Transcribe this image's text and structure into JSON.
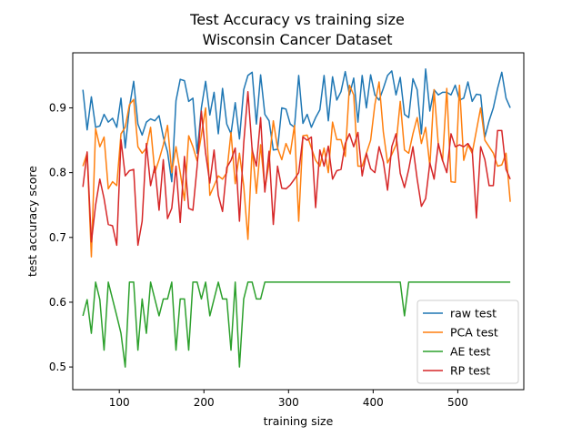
{
  "chart_data": {
    "type": "line",
    "title": "Test Accuracy vs training size",
    "subtitle": "Wisconsin Cancer Dataset",
    "xlabel": "training size",
    "ylabel": "test accuracy score",
    "xlim": [
      45,
      578
    ],
    "ylim": [
      0.465,
      0.985
    ],
    "xticks": [
      100,
      200,
      300,
      400,
      500
    ],
    "yticks": [
      0.5,
      0.6,
      0.7,
      0.8,
      0.9
    ],
    "legend_position": "lower-right",
    "grid": false,
    "x": [
      57,
      62,
      67,
      72,
      77,
      82,
      87,
      92,
      97,
      102,
      107,
      112,
      117,
      122,
      127,
      132,
      137,
      142,
      147,
      152,
      157,
      162,
      167,
      172,
      177,
      182,
      187,
      192,
      197,
      202,
      207,
      212,
      217,
      222,
      227,
      232,
      237,
      242,
      247,
      252,
      257,
      262,
      267,
      272,
      277,
      282,
      287,
      292,
      297,
      302,
      307,
      312,
      317,
      322,
      327,
      332,
      337,
      342,
      347,
      352,
      357,
      362,
      367,
      372,
      377,
      382,
      387,
      392,
      397,
      402,
      407,
      412,
      417,
      422,
      427,
      432,
      437,
      442,
      447,
      452,
      457,
      462,
      467,
      472,
      477,
      482,
      487,
      492,
      497,
      502,
      507,
      512,
      517,
      522,
      527,
      532,
      537,
      542,
      547,
      552,
      557,
      562
    ],
    "series": [
      {
        "name": "raw test",
        "color": "#1f77b4",
        "values": [
          0.928,
          0.866,
          0.917,
          0.87,
          0.872,
          0.89,
          0.878,
          0.884,
          0.87,
          0.915,
          0.838,
          0.901,
          0.941,
          0.875,
          0.858,
          0.878,
          0.883,
          0.88,
          0.888,
          0.855,
          0.832,
          0.786,
          0.911,
          0.944,
          0.942,
          0.91,
          0.915,
          0.83,
          0.9,
          0.941,
          0.889,
          0.924,
          0.86,
          0.93,
          0.875,
          0.86,
          0.908,
          0.852,
          0.928,
          0.95,
          0.955,
          0.875,
          0.951,
          0.89,
          0.88,
          0.835,
          0.836,
          0.9,
          0.898,
          0.875,
          0.87,
          0.95,
          0.876,
          0.89,
          0.87,
          0.885,
          0.897,
          0.95,
          0.88,
          0.948,
          0.912,
          0.925,
          0.956,
          0.92,
          0.946,
          0.878,
          0.95,
          0.9,
          0.951,
          0.92,
          0.912,
          0.93,
          0.95,
          0.957,
          0.92,
          0.947,
          0.89,
          0.885,
          0.945,
          0.928,
          0.86,
          0.96,
          0.895,
          0.928,
          0.92,
          0.924,
          0.924,
          0.92,
          0.935,
          0.912,
          0.915,
          0.94,
          0.91,
          0.921,
          0.92,
          0.855,
          0.88,
          0.9,
          0.93,
          0.955,
          0.915,
          0.9
        ]
      },
      {
        "name": "PCA test",
        "color": "#ff7f0e",
        "values": [
          0.81,
          0.83,
          0.67,
          0.868,
          0.84,
          0.855,
          0.775,
          0.786,
          0.78,
          0.86,
          0.87,
          0.905,
          0.913,
          0.84,
          0.83,
          0.838,
          0.87,
          0.8,
          0.82,
          0.843,
          0.873,
          0.8,
          0.84,
          0.8,
          0.757,
          0.857,
          0.84,
          0.818,
          0.858,
          0.9,
          0.765,
          0.78,
          0.795,
          0.79,
          0.8,
          0.862,
          0.783,
          0.83,
          0.78,
          0.697,
          0.838,
          0.768,
          0.843,
          0.775,
          0.815,
          0.88,
          0.838,
          0.82,
          0.845,
          0.829,
          0.873,
          0.725,
          0.857,
          0.858,
          0.838,
          0.819,
          0.81,
          0.838,
          0.8,
          0.878,
          0.851,
          0.851,
          0.825,
          0.935,
          0.92,
          0.81,
          0.81,
          0.83,
          0.85,
          0.905,
          0.94,
          0.863,
          0.815,
          0.828,
          0.843,
          0.91,
          0.835,
          0.83,
          0.86,
          0.885,
          0.845,
          0.87,
          0.81,
          0.928,
          0.843,
          0.818,
          0.93,
          0.786,
          0.785,
          0.935,
          0.819,
          0.843,
          0.83,
          0.865,
          0.9,
          0.85,
          0.84,
          0.83,
          0.81,
          0.812,
          0.83,
          0.755
        ]
      },
      {
        "name": "AE test",
        "color": "#2ca02c",
        "values": [
          0.579,
          0.604,
          0.552,
          0.631,
          0.604,
          0.526,
          0.631,
          0.605,
          0.579,
          0.552,
          0.5,
          0.631,
          0.631,
          0.526,
          0.605,
          0.552,
          0.631,
          0.605,
          0.579,
          0.605,
          0.605,
          0.631,
          0.526,
          0.605,
          0.605,
          0.526,
          0.631,
          0.631,
          0.605,
          0.631,
          0.579,
          0.605,
          0.631,
          0.605,
          0.605,
          0.526,
          0.631,
          0.5,
          0.605,
          0.631,
          0.631,
          0.605,
          0.605,
          0.631,
          0.631,
          0.631,
          0.631,
          0.631,
          0.631,
          0.631,
          0.631,
          0.631,
          0.631,
          0.631,
          0.631,
          0.631,
          0.631,
          0.631,
          0.631,
          0.631,
          0.631,
          0.631,
          0.631,
          0.631,
          0.631,
          0.631,
          0.631,
          0.631,
          0.631,
          0.631,
          0.631,
          0.631,
          0.631,
          0.631,
          0.631,
          0.631,
          0.579,
          0.631,
          0.631,
          0.631,
          0.631,
          0.631,
          0.631,
          0.631,
          0.631,
          0.631,
          0.631,
          0.631,
          0.631,
          0.631,
          0.631,
          0.631,
          0.631,
          0.631,
          0.631,
          0.631,
          0.631,
          0.631,
          0.631,
          0.631,
          0.631,
          0.631
        ]
      },
      {
        "name": "RP test",
        "color": "#d62728",
        "values": [
          0.778,
          0.832,
          0.693,
          0.75,
          0.79,
          0.76,
          0.72,
          0.718,
          0.688,
          0.851,
          0.795,
          0.803,
          0.805,
          0.688,
          0.725,
          0.845,
          0.78,
          0.81,
          0.742,
          0.82,
          0.729,
          0.745,
          0.81,
          0.723,
          0.825,
          0.745,
          0.742,
          0.81,
          0.895,
          0.83,
          0.784,
          0.835,
          0.765,
          0.74,
          0.808,
          0.819,
          0.838,
          0.725,
          0.845,
          0.925,
          0.835,
          0.81,
          0.885,
          0.77,
          0.833,
          0.72,
          0.81,
          0.776,
          0.775,
          0.781,
          0.79,
          0.8,
          0.855,
          0.85,
          0.855,
          0.746,
          0.835,
          0.81,
          0.841,
          0.79,
          0.803,
          0.805,
          0.845,
          0.86,
          0.84,
          0.862,
          0.795,
          0.83,
          0.806,
          0.8,
          0.84,
          0.817,
          0.773,
          0.84,
          0.86,
          0.799,
          0.777,
          0.805,
          0.84,
          0.79,
          0.748,
          0.76,
          0.815,
          0.79,
          0.845,
          0.819,
          0.8,
          0.86,
          0.84,
          0.843,
          0.84,
          0.845,
          0.835,
          0.73,
          0.84,
          0.82,
          0.78,
          0.78,
          0.865,
          0.865,
          0.805,
          0.79
        ]
      }
    ]
  }
}
